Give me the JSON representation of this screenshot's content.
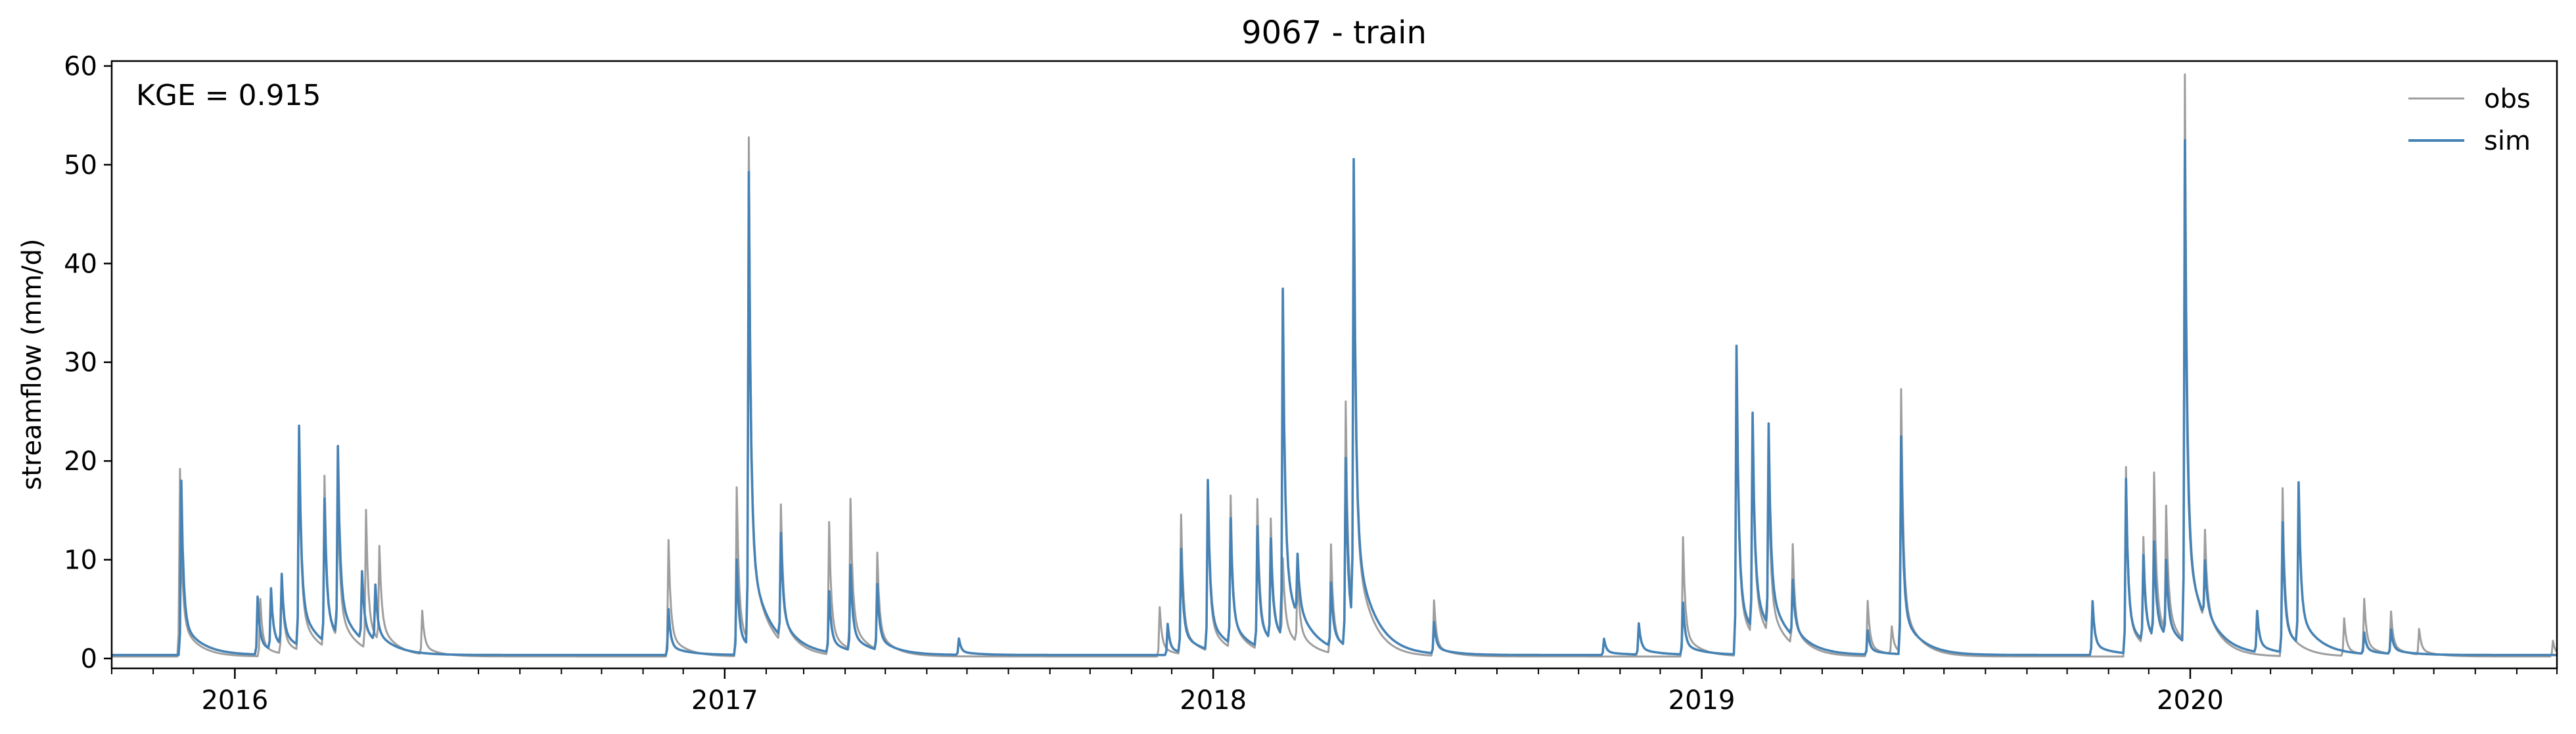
{
  "chart_data": {
    "type": "line",
    "title": "9067 - train",
    "xlabel": "",
    "ylabel": "streamflow (mm/d)",
    "annotation": "KGE = 0.915",
    "legend_position": "top-right",
    "grid": false,
    "xlim": [
      "2015-10-01",
      "2020-10-01"
    ],
    "ylim": [
      -1,
      60.5
    ],
    "yticks": [
      0,
      10,
      20,
      30,
      40,
      50,
      60
    ],
    "xticks": [
      {
        "date": "2016-01-01",
        "label": "2016"
      },
      {
        "date": "2017-01-01",
        "label": "2017"
      },
      {
        "date": "2018-01-01",
        "label": "2018"
      },
      {
        "date": "2019-01-01",
        "label": "2019"
      },
      {
        "date": "2020-01-01",
        "label": "2020"
      }
    ],
    "series": [
      {
        "name": "obs",
        "color": "#9e9e9e",
        "baseline": 0.2,
        "recession_days": 12,
        "peaks": [
          [
            "2015-11-21",
            19.2
          ],
          [
            "2016-01-20",
            6.0
          ],
          [
            "2016-02-05",
            8.0
          ],
          [
            "2016-02-18",
            21.5
          ],
          [
            "2016-03-08",
            17.5
          ],
          [
            "2016-03-18",
            15.0
          ],
          [
            "2016-04-08",
            14.2
          ],
          [
            "2016-04-18",
            9.8
          ],
          [
            "2016-05-20",
            4.6
          ],
          [
            "2016-11-20",
            12.0
          ],
          [
            "2017-01-10",
            17.3
          ],
          [
            "2017-01-19",
            51.1
          ],
          [
            "2017-02-12",
            14.0
          ],
          [
            "2017-03-20",
            13.6
          ],
          [
            "2017-04-05",
            15.4
          ],
          [
            "2017-04-25",
            10.0
          ],
          [
            "2017-11-22",
            5.2
          ],
          [
            "2017-12-08",
            14.3
          ],
          [
            "2017-12-28",
            16.0
          ],
          [
            "2018-01-14",
            15.6
          ],
          [
            "2018-02-03",
            15.4
          ],
          [
            "2018-02-13",
            12.5
          ],
          [
            "2018-02-22",
            8.2
          ],
          [
            "2018-03-05",
            7.5
          ],
          [
            "2018-03-30",
            11.2
          ],
          [
            "2018-04-10",
            25.0
          ],
          [
            "2018-04-16",
            44.0
          ],
          [
            "2018-06-15",
            5.8
          ],
          [
            "2018-12-18",
            12.3
          ],
          [
            "2019-01-27",
            30.2
          ],
          [
            "2019-02-08",
            21.8
          ],
          [
            "2019-02-20",
            17.0
          ],
          [
            "2019-03-10",
            10.3
          ],
          [
            "2019-05-05",
            5.8
          ],
          [
            "2019-05-23",
            3.0
          ],
          [
            "2019-05-30",
            26.8
          ],
          [
            "2019-11-14",
            19.4
          ],
          [
            "2019-11-27",
            11.0
          ],
          [
            "2019-12-05",
            17.0
          ],
          [
            "2019-12-14",
            13.0
          ],
          [
            "2019-12-28",
            57.6
          ],
          [
            "2020-01-12",
            9.3
          ],
          [
            "2020-03-10",
            17.2
          ],
          [
            "2020-04-25",
            4.0
          ],
          [
            "2020-05-10",
            5.8
          ],
          [
            "2020-05-30",
            4.5
          ],
          [
            "2020-06-20",
            2.8
          ],
          [
            "2020-09-28",
            1.8
          ]
        ]
      },
      {
        "name": "sim",
        "color": "#4682b4",
        "baseline": 0.35,
        "recession_days": 14,
        "peaks": [
          [
            "2015-11-22",
            18.0
          ],
          [
            "2016-01-18",
            6.2
          ],
          [
            "2016-01-28",
            6.5
          ],
          [
            "2016-02-05",
            7.5
          ],
          [
            "2016-02-18",
            22.6
          ],
          [
            "2016-03-08",
            14.8
          ],
          [
            "2016-03-18",
            19.4
          ],
          [
            "2016-04-05",
            7.2
          ],
          [
            "2016-04-15",
            6.0
          ],
          [
            "2016-11-20",
            5.0
          ],
          [
            "2017-01-10",
            10.0
          ],
          [
            "2017-01-19",
            48.2
          ],
          [
            "2017-02-12",
            10.8
          ],
          [
            "2017-03-20",
            6.5
          ],
          [
            "2017-04-05",
            9.0
          ],
          [
            "2017-04-25",
            7.0
          ],
          [
            "2017-06-25",
            2.0
          ],
          [
            "2017-11-28",
            3.5
          ],
          [
            "2017-12-08",
            10.8
          ],
          [
            "2017-12-28",
            17.5
          ],
          [
            "2018-01-14",
            13.0
          ],
          [
            "2018-02-03",
            12.5
          ],
          [
            "2018-02-13",
            10.5
          ],
          [
            "2018-02-22",
            35.5
          ],
          [
            "2018-03-05",
            6.5
          ],
          [
            "2018-03-30",
            6.8
          ],
          [
            "2018-04-10",
            19.3
          ],
          [
            "2018-04-16",
            47.1
          ],
          [
            "2018-06-15",
            3.5
          ],
          [
            "2018-10-20",
            2.0
          ],
          [
            "2018-11-15",
            3.5
          ],
          [
            "2018-12-18",
            5.6
          ],
          [
            "2019-01-27",
            31.6
          ],
          [
            "2019-02-08",
            22.2
          ],
          [
            "2019-02-20",
            20.8
          ],
          [
            "2019-03-10",
            6.0
          ],
          [
            "2019-05-05",
            2.8
          ],
          [
            "2019-05-30",
            22.4
          ],
          [
            "2019-10-20",
            5.8
          ],
          [
            "2019-11-14",
            18.0
          ],
          [
            "2019-11-27",
            9.0
          ],
          [
            "2019-12-05",
            10.0
          ],
          [
            "2019-12-14",
            8.0
          ],
          [
            "2019-12-28",
            51.2
          ],
          [
            "2020-01-12",
            6.0
          ],
          [
            "2020-02-20",
            4.5
          ],
          [
            "2020-03-10",
            13.5
          ],
          [
            "2020-03-22",
            16.6
          ],
          [
            "2020-05-10",
            2.5
          ],
          [
            "2020-05-30",
            2.8
          ]
        ]
      }
    ]
  }
}
